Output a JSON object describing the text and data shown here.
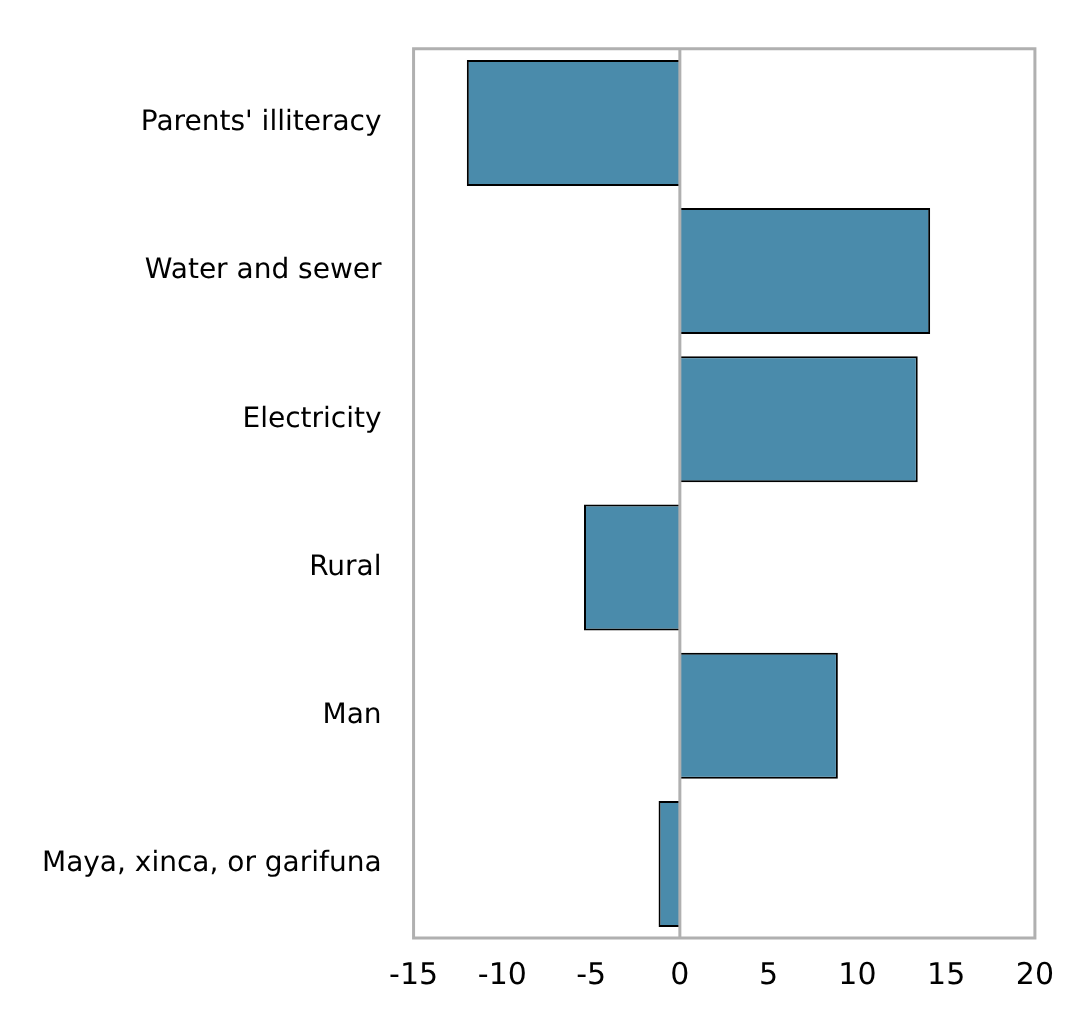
{
  "chart_data": {
    "type": "bar",
    "orientation": "horizontal",
    "categories": [
      "Parents' illiteracy",
      "Water and sewer",
      "Electricity",
      "Rural",
      "Man",
      "Maya, xinca, or garifuna"
    ],
    "values": [
      -12.0,
      14.1,
      13.4,
      -5.4,
      8.9,
      -1.2
    ],
    "color": "#4a8bab",
    "xlim": [
      -15,
      20
    ],
    "xticks": [
      -15,
      -10,
      -5,
      0,
      5,
      10,
      15,
      20
    ],
    "ref_lines": [
      {
        "axis": "x",
        "value": 0,
        "color": "#b0b0b0"
      }
    ],
    "grid": false,
    "legend": false
  }
}
